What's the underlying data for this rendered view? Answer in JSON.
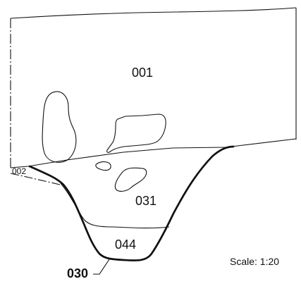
{
  "drawing": {
    "labels": {
      "context_001": "001",
      "context_002": "002",
      "context_031": "031",
      "context_044": "044",
      "cut_030": "030"
    },
    "scale_text": "Scale: 1:20"
  }
}
